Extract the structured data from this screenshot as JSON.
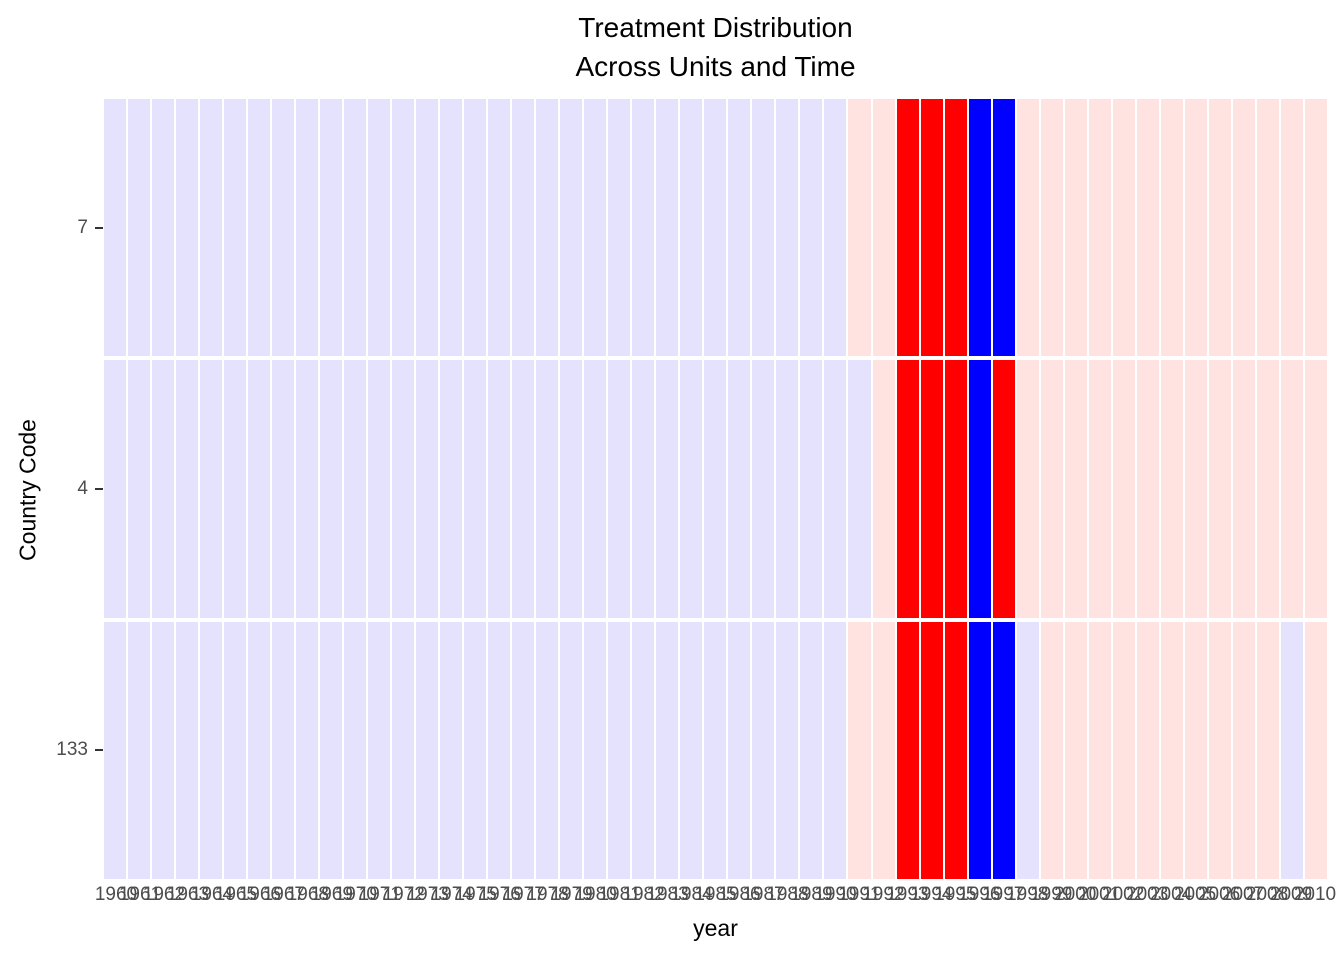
{
  "chart_data": {
    "type": "heatmap",
    "title_line1": "Treatment Distribution",
    "title_line2": "Across Units and Time",
    "xlabel": "year",
    "ylabel": "Country Code",
    "x_years": [
      1960,
      1961,
      1962,
      1963,
      1964,
      1965,
      1966,
      1967,
      1968,
      1969,
      1970,
      1971,
      1972,
      1973,
      1974,
      1975,
      1976,
      1977,
      1978,
      1979,
      1980,
      1981,
      1982,
      1983,
      1984,
      1985,
      1986,
      1987,
      1988,
      1989,
      1990,
      1991,
      1992,
      1993,
      1994,
      1995,
      1996,
      1997,
      1998,
      1999,
      2000,
      2001,
      2002,
      2003,
      2004,
      2005,
      2006,
      2007,
      2008,
      2009,
      2010
    ],
    "y_categories": [
      "7",
      "4",
      "133"
    ],
    "palette": {
      "lavender": "#E4E2FC",
      "pink": "#FFE3E0",
      "red": "#FF0000",
      "blue": "#0000FF"
    },
    "axis_text_color": "#4D4D4D",
    "tick_mark_color": "#333333",
    "rows": [
      {
        "code": "7",
        "runs": [
          [
            "lavender",
            31
          ],
          [
            "pink",
            2
          ],
          [
            "red",
            3
          ],
          [
            "blue",
            2
          ],
          [
            "pink",
            13
          ]
        ]
      },
      {
        "code": "4",
        "runs": [
          [
            "lavender",
            32
          ],
          [
            "pink",
            1
          ],
          [
            "red",
            3
          ],
          [
            "blue",
            1
          ],
          [
            "red",
            1
          ],
          [
            "pink",
            13
          ]
        ]
      },
      {
        "code": "133",
        "runs": [
          [
            "lavender",
            31
          ],
          [
            "pink",
            2
          ],
          [
            "red",
            3
          ],
          [
            "blue",
            2
          ],
          [
            "lavender",
            1
          ],
          [
            "pink",
            10
          ],
          [
            "lavender",
            1
          ],
          [
            "pink",
            1
          ]
        ]
      }
    ],
    "legend_position": "none",
    "grid": false
  }
}
